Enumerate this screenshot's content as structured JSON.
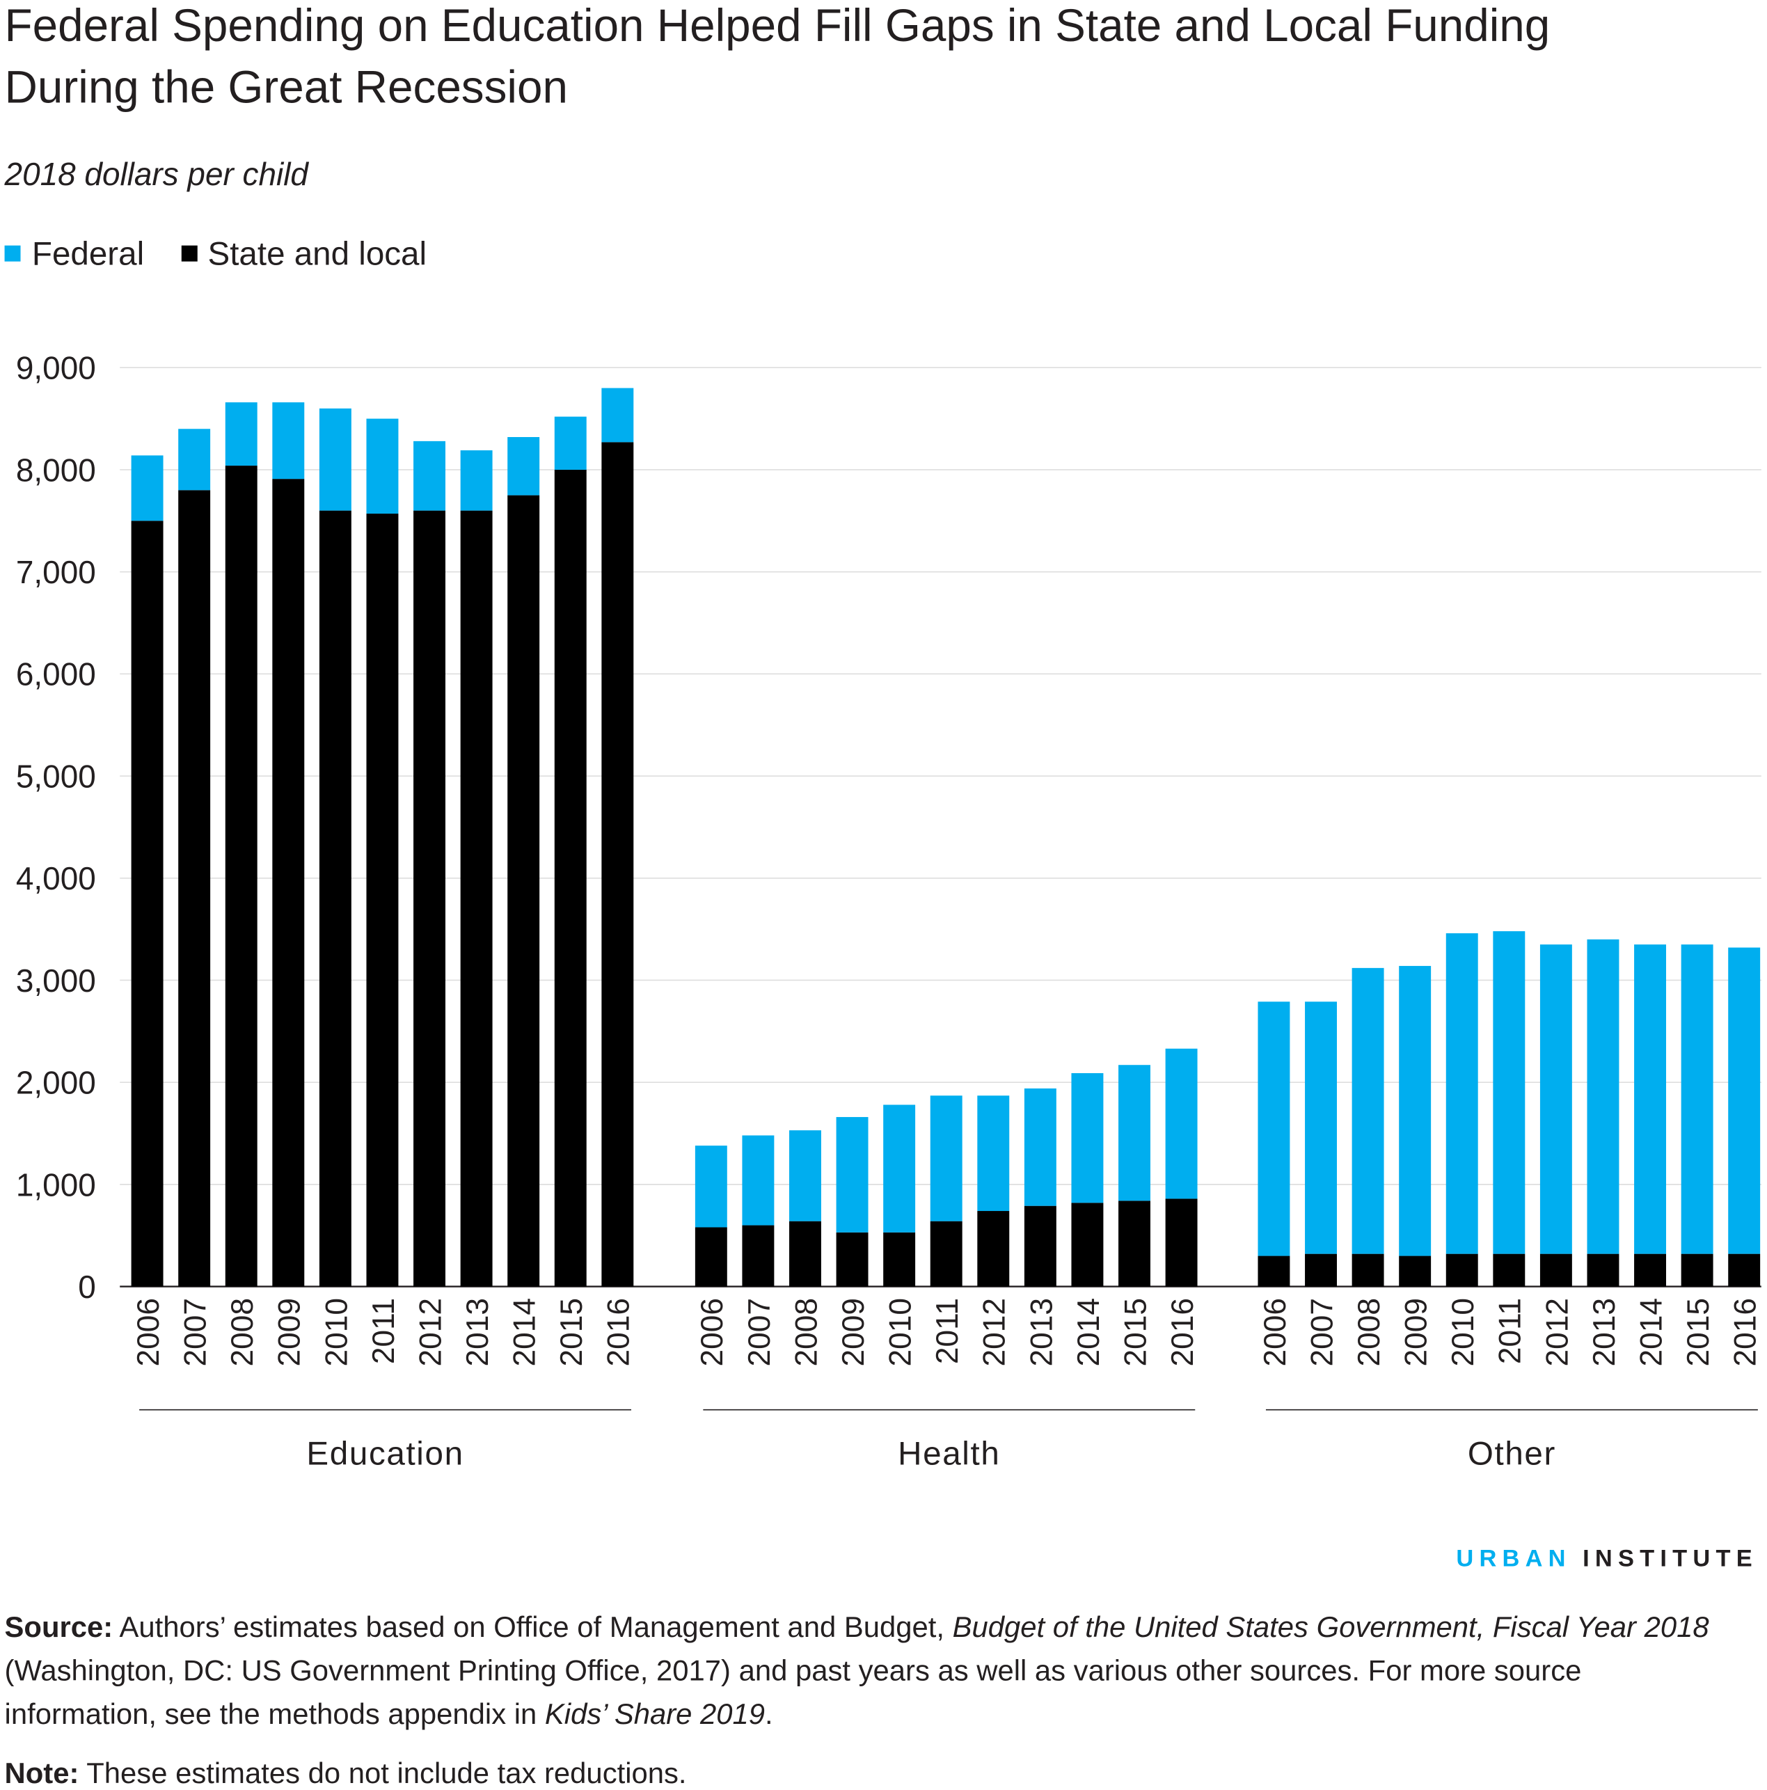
{
  "title_line1": "Federal Spending on Education Helped Fill Gaps in State and Local Funding",
  "title_line2": "During the Great Recession",
  "subtitle": "2018 dollars per child",
  "logo": {
    "part1": "URBAN",
    "part2": "INSTITUTE"
  },
  "source": {
    "label": "Source:",
    "line1_a": " Authors’ estimates based on Office of Management and Budget, ",
    "line1_b": "Budget of the United States Government, Fiscal Year 2018",
    "line2": "(Washington, DC: US Government Printing Office, 2017) and past years as well as various other sources. For more source",
    "line3_a": "information, see the methods appendix in ",
    "line3_b": "Kids’ Share 2019",
    "line3_c": "."
  },
  "note": {
    "label": "Note:",
    "text": " These estimates do not include tax reductions."
  },
  "colors": {
    "federal": "#00aeef",
    "state_local": "#000000",
    "grid": "#dedede"
  },
  "chart_data": {
    "type": "bar",
    "stacked": true,
    "title": "Federal Spending on Education Helped Fill Gaps in State and Local Funding During the Great Recession",
    "ylabel": "2018 dollars per child",
    "ylim": [
      0,
      9000
    ],
    "yticks": [
      "0",
      "1,000",
      "2,000",
      "3,000",
      "4,000",
      "5,000",
      "6,000",
      "7,000",
      "8,000",
      "9,000"
    ],
    "grid": true,
    "legend_placement": "top-left",
    "legend": [
      "Federal",
      "State and local"
    ],
    "years": [
      "2006",
      "2007",
      "2008",
      "2009",
      "2010",
      "2011",
      "2012",
      "2013",
      "2014",
      "2015",
      "2016"
    ],
    "groups": [
      {
        "name": "Education",
        "state_local": [
          7500,
          7800,
          8040,
          7910,
          7600,
          7570,
          7600,
          7600,
          7750,
          8000,
          8270
        ],
        "federal": [
          640,
          600,
          620,
          750,
          1000,
          930,
          680,
          590,
          570,
          520,
          530
        ]
      },
      {
        "name": "Health",
        "state_local": [
          580,
          600,
          640,
          530,
          530,
          640,
          740,
          790,
          820,
          840,
          860
        ],
        "federal": [
          800,
          880,
          890,
          1130,
          1250,
          1230,
          1130,
          1150,
          1270,
          1330,
          1470
        ]
      },
      {
        "name": "Other",
        "state_local": [
          300,
          320,
          320,
          300,
          320,
          320,
          320,
          320,
          320,
          320,
          320
        ],
        "federal": [
          2490,
          2470,
          2800,
          2840,
          3140,
          3160,
          3030,
          3080,
          3030,
          3030,
          3000
        ]
      }
    ]
  }
}
